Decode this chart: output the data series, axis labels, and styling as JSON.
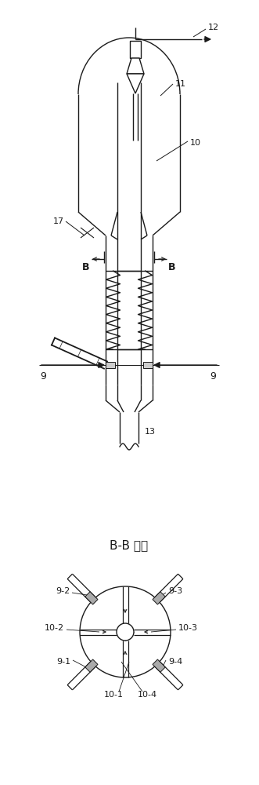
{
  "bg_color": "#ffffff",
  "line_color": "#1a1a1a",
  "title": "B-B 剖面",
  "fig_width": 3.31,
  "fig_height": 10.0,
  "dpi": 100
}
